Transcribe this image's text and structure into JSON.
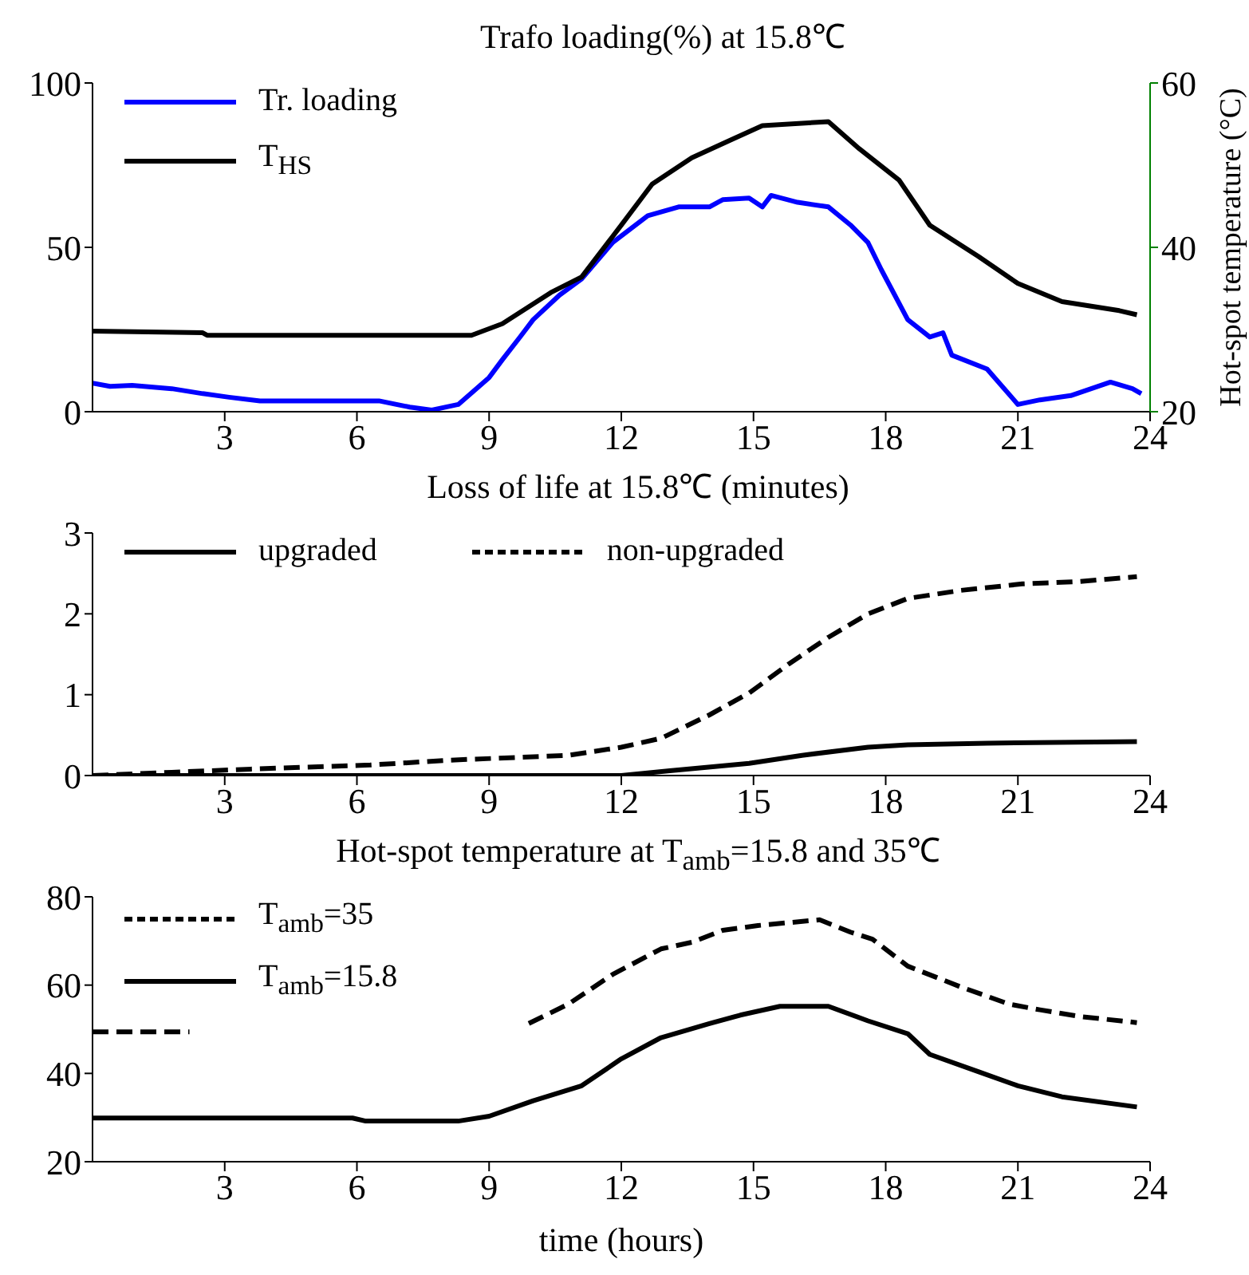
{
  "chart_data": [
    {
      "type": "line",
      "title": "Trafo loading(%) at 15.8℃",
      "y2label": "Hot-spot temperature (°C)",
      "xlim": [
        0,
        24
      ],
      "xticks": [
        3,
        6,
        9,
        12,
        15,
        18,
        21,
        24
      ],
      "ylim": [
        0,
        100
      ],
      "yticks": [
        0,
        50,
        100
      ],
      "y2lim": [
        20,
        60
      ],
      "y2ticks": [
        20,
        40,
        60
      ],
      "legend": "top left",
      "marker": "none",
      "series": [
        {
          "name": "Tr. loading",
          "color": "#0000ff",
          "line_style": "solid",
          "x": [
            0,
            0.4,
            0.9,
            1.8,
            2.5,
            3.1,
            3.8,
            5.4,
            6.5,
            7.2,
            7.7,
            8.3,
            9.0,
            9.3,
            9.7,
            10,
            10.6,
            11.1,
            11.8,
            12.6,
            13.3,
            14,
            14.3,
            14.9,
            15.2,
            15.4,
            16,
            16.7,
            17.2,
            17.6,
            17.9,
            18.5,
            19,
            19.3,
            19.5,
            20.3,
            21,
            21.5,
            22.2,
            23.1,
            23.6,
            23.8
          ],
          "values": [
            8.7,
            7.7,
            8,
            7,
            5.5,
            4.4,
            3.3,
            3.3,
            3.3,
            1.4,
            0.5,
            2.2,
            10.4,
            15.8,
            22.7,
            28,
            35.5,
            40.4,
            51.4,
            59.6,
            62.3,
            62.3,
            64.5,
            65,
            62.3,
            65.8,
            63.7,
            62.3,
            56.8,
            51.4,
            43.2,
            28,
            22.7,
            24,
            17.2,
            13,
            2.2,
            3.6,
            4.9,
            9,
            7,
            5.5
          ]
        },
        {
          "name": "T$_{HS}$",
          "color": "#000000",
          "line_style": "solid",
          "axis": "y2",
          "x": [
            0,
            2.5,
            2.6,
            8.6,
            9.3,
            10.4,
            11.1,
            12,
            12.7,
            13.6,
            14.5,
            15.2,
            16.7,
            17.4,
            18.3,
            19,
            20.1,
            21,
            22,
            23.3,
            23.7
          ],
          "values": [
            29.8,
            29.6,
            29.3,
            29.3,
            30.7,
            34.5,
            36.4,
            42.7,
            47.7,
            50.9,
            53.1,
            54.8,
            55.3,
            52,
            48.2,
            42.7,
            38.9,
            35.6,
            33.4,
            32.3,
            31.8
          ]
        }
      ]
    },
    {
      "type": "line",
      "title": "Loss of life at 15.8℃ (minutes)",
      "xlim": [
        0,
        24
      ],
      "xticks": [
        3,
        6,
        9,
        12,
        15,
        18,
        21,
        24
      ],
      "ylim": [
        0,
        3
      ],
      "yticks": [
        0,
        1,
        2,
        3
      ],
      "legend": "top left",
      "marker": "none",
      "series": [
        {
          "name": "upgraded",
          "color": "#000000",
          "line_style": "solid",
          "x": [
            0,
            12,
            13.1,
            14.9,
            16.1,
            17.6,
            18.5,
            20.3,
            23.7
          ],
          "values": [
            0,
            0,
            0.06,
            0.15,
            0.25,
            0.35,
            0.38,
            0.4,
            0.42
          ]
        },
        {
          "name": "non-upgraded",
          "color": "#000000",
          "line_style": "dashed",
          "x": [
            0,
            1.8,
            3.6,
            6.3,
            8.1,
            10.8,
            12,
            12.9,
            14,
            14.9,
            15.8,
            16.7,
            17.6,
            18.5,
            19.7,
            21.1,
            22.4,
            23.7
          ],
          "values": [
            0,
            0.04,
            0.08,
            0.13,
            0.19,
            0.25,
            0.35,
            0.46,
            0.75,
            1.02,
            1.38,
            1.71,
            2,
            2.19,
            2.29,
            2.37,
            2.4,
            2.46
          ]
        }
      ]
    },
    {
      "type": "line",
      "title": "Hot-spot temperature at T$_{amb}$=15.8 and 35℃",
      "xlabel": "time (hours)",
      "xlim": [
        0,
        24
      ],
      "xticks": [
        3,
        6,
        9,
        12,
        15,
        18,
        21,
        24
      ],
      "ylim": [
        20,
        80
      ],
      "yticks": [
        20,
        40,
        60,
        80
      ],
      "legend": "top left",
      "marker": "none",
      "series": [
        {
          "name": "T$_{amb}$=35",
          "color": "#000000",
          "line_style": "dashed",
          "x": [
            0,
            2.2,
            5,
            9.9,
            10.8,
            11.8,
            12.9,
            13.6,
            14.3,
            15.1,
            16.5,
            17.2,
            17.7,
            18.5,
            19.7,
            20.8,
            21.5,
            22.4,
            23.7
          ],
          "values": [
            49.4,
            49.4,
            null,
            51.3,
            55.7,
            62.4,
            68.2,
            69.7,
            72.4,
            73.5,
            74.8,
            72,
            70.4,
            64.3,
            59.6,
            55.7,
            54.4,
            52.9,
            51.5
          ]
        },
        {
          "name": "T$_{amb}$=15.8",
          "color": "#000000",
          "line_style": "solid",
          "x": [
            0,
            5.9,
            6.2,
            8.3,
            9,
            10,
            11.1,
            12,
            12.9,
            14,
            14.7,
            15.6,
            16.7,
            17.6,
            18.5,
            19,
            20.1,
            21,
            22,
            23.7
          ],
          "values": [
            29.9,
            29.9,
            29.2,
            29.2,
            30.3,
            33.8,
            37.2,
            43.3,
            48.1,
            51.3,
            53.2,
            55.2,
            55.2,
            51.9,
            49,
            44.3,
            40.4,
            37.2,
            34.7,
            32.4
          ]
        }
      ]
    }
  ]
}
